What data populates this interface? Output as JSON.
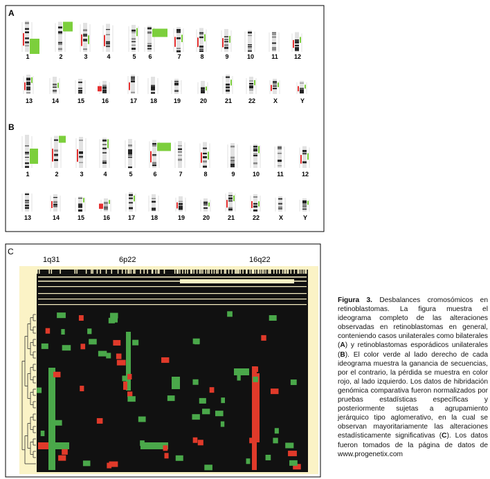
{
  "panel_a": {
    "label": "A",
    "chromosomes": [
      "1",
      "2",
      "3",
      "4",
      "5",
      "6",
      "7",
      "8",
      "9",
      "10",
      "11",
      "12",
      "13",
      "14",
      "15",
      "16",
      "17",
      "18",
      "19",
      "20",
      "21",
      "22",
      "X",
      "Y"
    ]
  },
  "panel_b": {
    "label": "B",
    "chromosomes": [
      "1",
      "2",
      "3",
      "4",
      "5",
      "6",
      "7",
      "8",
      "9",
      "10",
      "11",
      "12",
      "13",
      "14",
      "15",
      "16",
      "17",
      "18",
      "19",
      "20",
      "21",
      "22",
      "X",
      "Y"
    ]
  },
  "panel_c": {
    "label": "C",
    "markers": [
      "1q31",
      "6p22",
      "16q22"
    ]
  },
  "caption": {
    "figure_label": "Figura 3.",
    "parts": [
      "Desbalances cromosómicos en retinoblastomas. La figura muestra el ideograma completo de las alteraciones observadas en retinoblastomas en general, conteniendo casos unilaterales como bilaterales (",
      "A",
      ") y retinoblastomas esporádicos unilaterales (",
      "B",
      "). El color verde al lado derecho de cada ideograma muestra la ganancia de secuencias, por el contrario, la pérdida se muestra en color rojo, al lado izquierdo. Los datos de hibridación genómica comparativa fueron normalizados por pruebas estadísticas específicas y posteriormente sujetas a agrupamiento jerárquico tipo aglomerativo, en la cual se observan mayoritariamente las alteraciones estadísticamente significativas (",
      "C",
      "). Los datos fueron tomados de la página de datos de www.progenetix.com"
    ]
  }
}
